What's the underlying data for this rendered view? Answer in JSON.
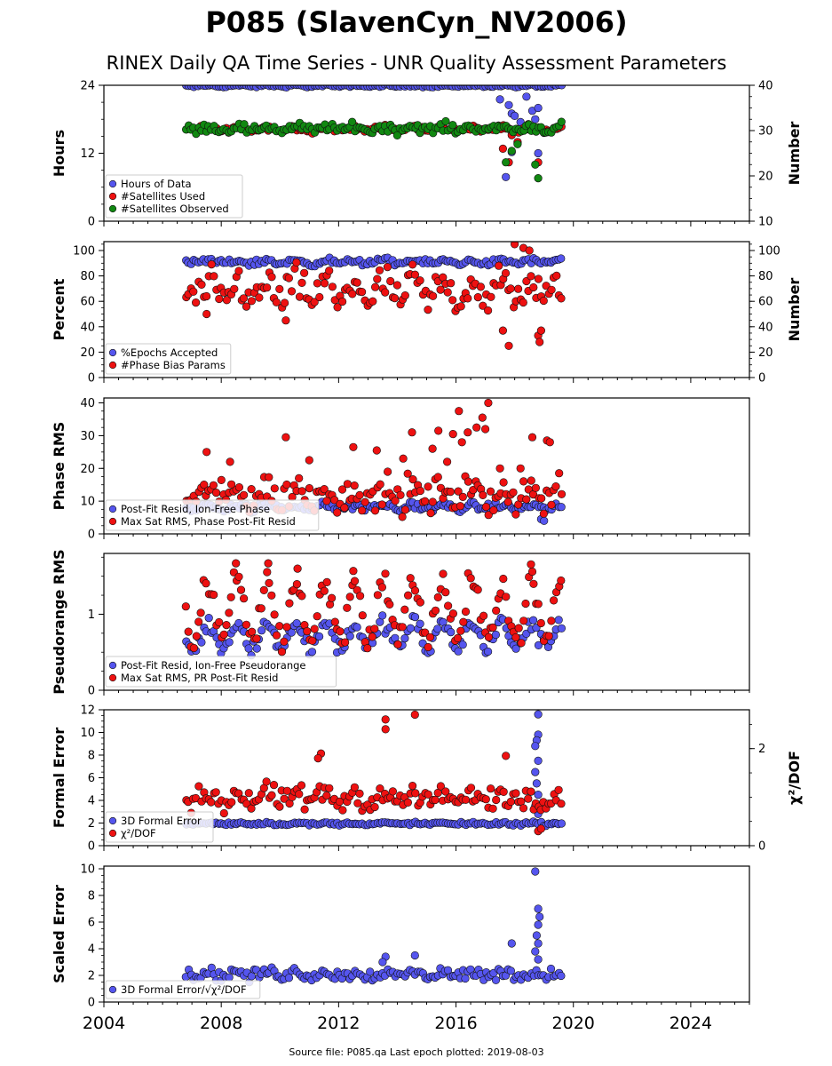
{
  "header": {
    "title": "P085 (SlavenCyn_NV2006)",
    "subtitle": "RINEX Daily QA Time Series - UNR Quality Assessment Parameters"
  },
  "footer": {
    "source": "Source file: P085.qa Last epoch plotted: 2019-08-03"
  },
  "colors": {
    "blue": "#5555ee",
    "red": "#ee1111",
    "green": "#118811"
  },
  "x_axis": {
    "xlim": [
      2004.0,
      2026.0
    ],
    "ticks": [
      2004,
      2008,
      2012,
      2016,
      2020,
      2024
    ],
    "tick_labels": [
      "2004",
      "2008",
      "2012",
      "2016",
      "2020",
      "2024"
    ]
  },
  "chart_data": [
    {
      "type": "scatter",
      "ylabel": "Hours",
      "ylim": [
        0,
        24
      ],
      "yticks": [
        0,
        12,
        24
      ],
      "ytick_labels": [
        "0",
        "12",
        "24"
      ],
      "y2label": "Number",
      "y2lim": [
        10,
        40
      ],
      "y2ticks": [
        10,
        20,
        30,
        40
      ],
      "y2tick_labels": [
        "10",
        "20",
        "30",
        "40"
      ],
      "legend_position": "lower-left",
      "legend": [
        "Hours of Data",
        "#Satellites Used",
        "#Satellites Observed"
      ],
      "series": [
        {
          "name": "Hours of Data",
          "color": "blue",
          "axis": "left",
          "x_range": [
            2006.8,
            2019.59
          ],
          "base": 23.9,
          "amp": 0.1,
          "noise": 0.1,
          "outliers": [
            [
              2017.5,
              21.5
            ],
            [
              2017.8,
              20.5
            ],
            [
              2017.9,
              19.0
            ],
            [
              2018.0,
              18.6
            ],
            [
              2018.2,
              17.5
            ],
            [
              2018.4,
              22.0
            ],
            [
              2018.6,
              19.5
            ],
            [
              2018.7,
              18.0
            ],
            [
              2018.8,
              20.0
            ],
            [
              2017.7,
              7.8
            ],
            [
              2017.9,
              12.2
            ],
            [
              2018.1,
              13.8
            ],
            [
              2018.8,
              12.0
            ]
          ]
        },
        {
          "name": "#Satellites Used",
          "color": "red",
          "axis": "right",
          "x_range": [
            2006.8,
            2019.59
          ],
          "base": 30.4,
          "amp": 0.4,
          "noise": 0.3,
          "outliers": [
            [
              2009.6,
              30.0
            ],
            [
              2017.6,
              26.0
            ],
            [
              2017.8,
              23.0
            ],
            [
              2017.9,
              29.0
            ],
            [
              2018.8,
              23.0
            ],
            [
              2018.1,
              27.5
            ]
          ]
        },
        {
          "name": "#Satellites Observed",
          "color": "green",
          "axis": "right",
          "x_range": [
            2006.8,
            2019.59
          ],
          "base": 30.5,
          "amp": 0.5,
          "noise": 0.5,
          "outliers": [
            [
              2017.7,
              23.0
            ],
            [
              2017.9,
              25.5
            ],
            [
              2018.7,
              22.5
            ],
            [
              2018.8,
              19.5
            ],
            [
              2018.1,
              27.0
            ]
          ]
        }
      ]
    },
    {
      "type": "scatter",
      "ylabel": "Percent",
      "ylim": [
        0,
        107
      ],
      "yticks": [
        0,
        20,
        40,
        60,
        80,
        100
      ],
      "ytick_labels": [
        "0",
        "20",
        "40",
        "60",
        "80",
        "100"
      ],
      "y2label": "Number",
      "y2lim": [
        0,
        107
      ],
      "y2ticks": [
        0,
        20,
        40,
        60,
        80,
        100
      ],
      "y2tick_labels": [
        "0",
        "20",
        "40",
        "60",
        "80",
        "100"
      ],
      "legend_position": "lower-left",
      "legend": [
        "%Epochs Accepted",
        "#Phase Bias Params"
      ],
      "series": [
        {
          "name": "%Epochs Accepted",
          "color": "blue",
          "axis": "left",
          "x_range": [
            2006.8,
            2019.59
          ],
          "base": 91,
          "amp": 1.2,
          "noise": 1.2,
          "outliers": []
        },
        {
          "name": "#Phase Bias Params",
          "color": "red",
          "axis": "right",
          "x_range": [
            2006.8,
            2019.59
          ],
          "base": 68,
          "amp": 7,
          "noise": 7,
          "outliers": [
            [
              2018.0,
              105
            ],
            [
              2018.3,
              102
            ],
            [
              2018.5,
              100
            ],
            [
              2017.6,
              37
            ],
            [
              2017.8,
              25
            ],
            [
              2018.8,
              33
            ],
            [
              2018.9,
              37
            ],
            [
              2018.85,
              28
            ],
            [
              2010.2,
              45
            ],
            [
              2007.5,
              50
            ]
          ]
        }
      ]
    },
    {
      "type": "scatter",
      "ylabel": "Phase RMS",
      "ylim": [
        0,
        41.5
      ],
      "yticks": [
        0,
        10,
        20,
        30,
        40
      ],
      "ytick_labels": [
        "0",
        "10",
        "20",
        "30",
        "40"
      ],
      "legend_position": "lower-left",
      "legend": [
        "Post-Fit Resid, Ion-Free Phase",
        "Max Sat RMS, Phase Post-Fit Resid"
      ],
      "series": [
        {
          "name": "Post-Fit Resid, Ion-Free Phase",
          "color": "blue",
          "axis": "left",
          "x_range": [
            2006.8,
            2019.59
          ],
          "base": 8.2,
          "amp": 0.6,
          "noise": 0.6,
          "outliers": [
            [
              2018.9,
              4.5
            ],
            [
              2019.0,
              4.0
            ]
          ]
        },
        {
          "name": "Max Sat RMS, Phase Post-Fit Resid",
          "color": "red",
          "axis": "left",
          "x_range": [
            2006.8,
            2019.59
          ],
          "base": 12,
          "amp": 2,
          "noise": 2.5,
          "outliers": [
            [
              2017.1,
              40
            ],
            [
              2016.1,
              37.5
            ],
            [
              2016.9,
              35.5
            ],
            [
              2015.4,
              31.5
            ],
            [
              2015.9,
              30.5
            ],
            [
              2016.4,
              31
            ],
            [
              2016.7,
              32.5
            ],
            [
              2017.0,
              32
            ],
            [
              2016.2,
              28
            ],
            [
              2014.5,
              31
            ],
            [
              2018.6,
              29.5
            ],
            [
              2019.1,
              28.5
            ],
            [
              2019.2,
              28
            ],
            [
              2010.2,
              29.5
            ],
            [
              2012.5,
              26.5
            ],
            [
              2013.3,
              25.5
            ],
            [
              2014.2,
              23
            ],
            [
              2015.2,
              26
            ],
            [
              2015.7,
              22
            ],
            [
              2017.5,
              20
            ],
            [
              2018.2,
              20
            ],
            [
              2008.3,
              22
            ],
            [
              2007.5,
              25
            ],
            [
              2011.0,
              22.5
            ]
          ]
        }
      ]
    },
    {
      "type": "scatter",
      "ylabel": "Pseudorange RMS",
      "ylim": [
        0,
        1.8
      ],
      "yticks": [
        0,
        1
      ],
      "ytick_labels": [
        "0",
        "1"
      ],
      "legend_position": "lower-left",
      "legend": [
        "Post-Fit Resid, Ion-Free Pseudorange",
        "Max Sat RMS, PR Post-Fit Resid"
      ],
      "series": [
        {
          "name": "Post-Fit Resid, Ion-Free Pseudorange",
          "color": "blue",
          "axis": "left",
          "x_range": [
            2006.8,
            2019.59
          ],
          "base": 0.72,
          "amp": 0.16,
          "noise": 0.06,
          "outliers": []
        },
        {
          "name": "Max Sat RMS, PR Post-Fit Resid",
          "color": "red",
          "axis": "left",
          "x_range": [
            2006.8,
            2019.59
          ],
          "base": 1.05,
          "amp": 0.38,
          "noise": 0.1,
          "outliers": [
            [
              2008.5,
              1.67
            ],
            [
              2009.6,
              1.67
            ],
            [
              2010.6,
              1.6
            ],
            [
              2012.5,
              1.57
            ],
            [
              2018.6,
              1.56
            ]
          ]
        }
      ]
    },
    {
      "type": "scatter",
      "ylabel": "Formal Error",
      "ylim": [
        0,
        12
      ],
      "yticks": [
        0,
        2,
        4,
        6,
        8,
        10,
        12
      ],
      "ytick_labels": [
        "0",
        "2",
        "4",
        "6",
        "8",
        "10",
        "12"
      ],
      "y2label": "χ²/DOF",
      "y2lim": [
        0,
        2.8
      ],
      "y2ticks": [
        0,
        2
      ],
      "y2tick_labels": [
        "0",
        "2"
      ],
      "legend_position": "lower-left",
      "legend": [
        "3D Formal Error",
        "χ²/DOF"
      ],
      "series": [
        {
          "name": "3D Formal Error",
          "color": "blue",
          "axis": "left",
          "x_range": [
            2006.8,
            2019.59
          ],
          "base": 1.95,
          "amp": 0.05,
          "noise": 0.07,
          "outliers": [
            [
              2018.8,
              11.6
            ],
            [
              2018.8,
              9.8
            ],
            [
              2018.75,
              9.3
            ],
            [
              2018.7,
              8.8
            ],
            [
              2018.8,
              7.5
            ],
            [
              2018.7,
              6.5
            ],
            [
              2018.75,
              5.5
            ],
            [
              2018.8,
              4.5
            ],
            [
              2018.7,
              3.5
            ],
            [
              2018.8,
              2.8
            ]
          ]
        },
        {
          "name": "χ²/DOF",
          "color": "red",
          "axis": "right",
          "x_range": [
            2006.8,
            2019.59
          ],
          "base": 0.98,
          "amp": 0.1,
          "noise": 0.12,
          "outliers": [
            [
              2013.6,
              2.6
            ],
            [
              2013.6,
              2.4
            ],
            [
              2014.6,
              2.7
            ],
            [
              2011.4,
              1.9
            ],
            [
              2011.3,
              1.8
            ],
            [
              2017.7,
              1.85
            ],
            [
              2018.8,
              0.3
            ],
            [
              2018.9,
              0.35
            ]
          ]
        }
      ]
    },
    {
      "type": "scatter",
      "ylabel": "Scaled Error",
      "ylim": [
        0,
        10.2
      ],
      "yticks": [
        0,
        2,
        4,
        6,
        8,
        10
      ],
      "ytick_labels": [
        "0",
        "2",
        "4",
        "6",
        "8",
        "10"
      ],
      "legend_position": "lower-left",
      "legend": [
        "3D Formal Error/√χ²/DOF"
      ],
      "series": [
        {
          "name": "3D Formal Error/√χ²/DOF",
          "color": "blue",
          "axis": "left",
          "x_range": [
            2006.8,
            2019.59
          ],
          "base": 2.1,
          "amp": 0.15,
          "noise": 0.22,
          "outliers": [
            [
              2018.7,
              9.8
            ],
            [
              2018.8,
              7.0
            ],
            [
              2018.85,
              6.4
            ],
            [
              2018.8,
              5.8
            ],
            [
              2018.75,
              5.0
            ],
            [
              2018.8,
              4.4
            ],
            [
              2018.7,
              3.8
            ],
            [
              2017.9,
              4.4
            ],
            [
              2014.6,
              3.5
            ],
            [
              2013.6,
              3.4
            ],
            [
              2013.5,
              3.0
            ],
            [
              2018.8,
              3.2
            ]
          ]
        }
      ]
    }
  ]
}
